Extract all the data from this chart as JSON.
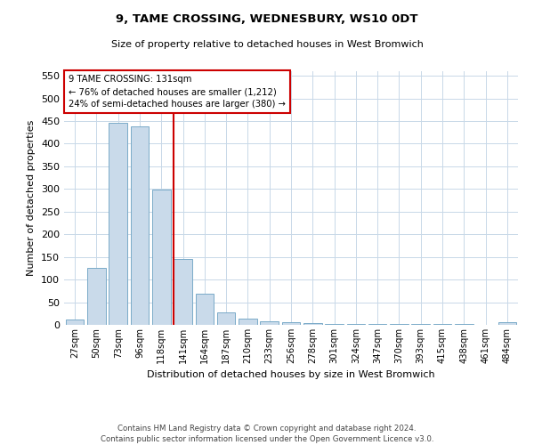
{
  "title1": "9, TAME CROSSING, WEDNESBURY, WS10 0DT",
  "title2": "Size of property relative to detached houses in West Bromwich",
  "xlabel": "Distribution of detached houses by size in West Bromwich",
  "ylabel": "Number of detached properties",
  "categories": [
    "27sqm",
    "50sqm",
    "73sqm",
    "96sqm",
    "118sqm",
    "141sqm",
    "164sqm",
    "187sqm",
    "210sqm",
    "233sqm",
    "256sqm",
    "278sqm",
    "301sqm",
    "324sqm",
    "347sqm",
    "370sqm",
    "393sqm",
    "415sqm",
    "438sqm",
    "461sqm",
    "484sqm"
  ],
  "values": [
    12,
    125,
    447,
    438,
    298,
    145,
    68,
    27,
    13,
    8,
    6,
    4,
    2,
    1,
    1,
    1,
    1,
    1,
    1,
    0,
    6
  ],
  "bar_color": "#c9daea",
  "bar_edge_color": "#7aaac8",
  "redline_x": 4.5,
  "annotation_line1": "9 TAME CROSSING: 131sqm",
  "annotation_line2": "← 76% of detached houses are smaller (1,212)",
  "annotation_line3": "24% of semi-detached houses are larger (380) →",
  "ylim": [
    0,
    560
  ],
  "yticks": [
    0,
    50,
    100,
    150,
    200,
    250,
    300,
    350,
    400,
    450,
    500,
    550
  ],
  "footer1": "Contains HM Land Registry data © Crown copyright and database right 2024.",
  "footer2": "Contains public sector information licensed under the Open Government Licence v3.0.",
  "bg_color": "#ffffff",
  "grid_color": "#c8d8e8",
  "annotation_box_color": "#ffffff",
  "annotation_box_edge": "#cc0000",
  "redline_color": "#cc0000"
}
